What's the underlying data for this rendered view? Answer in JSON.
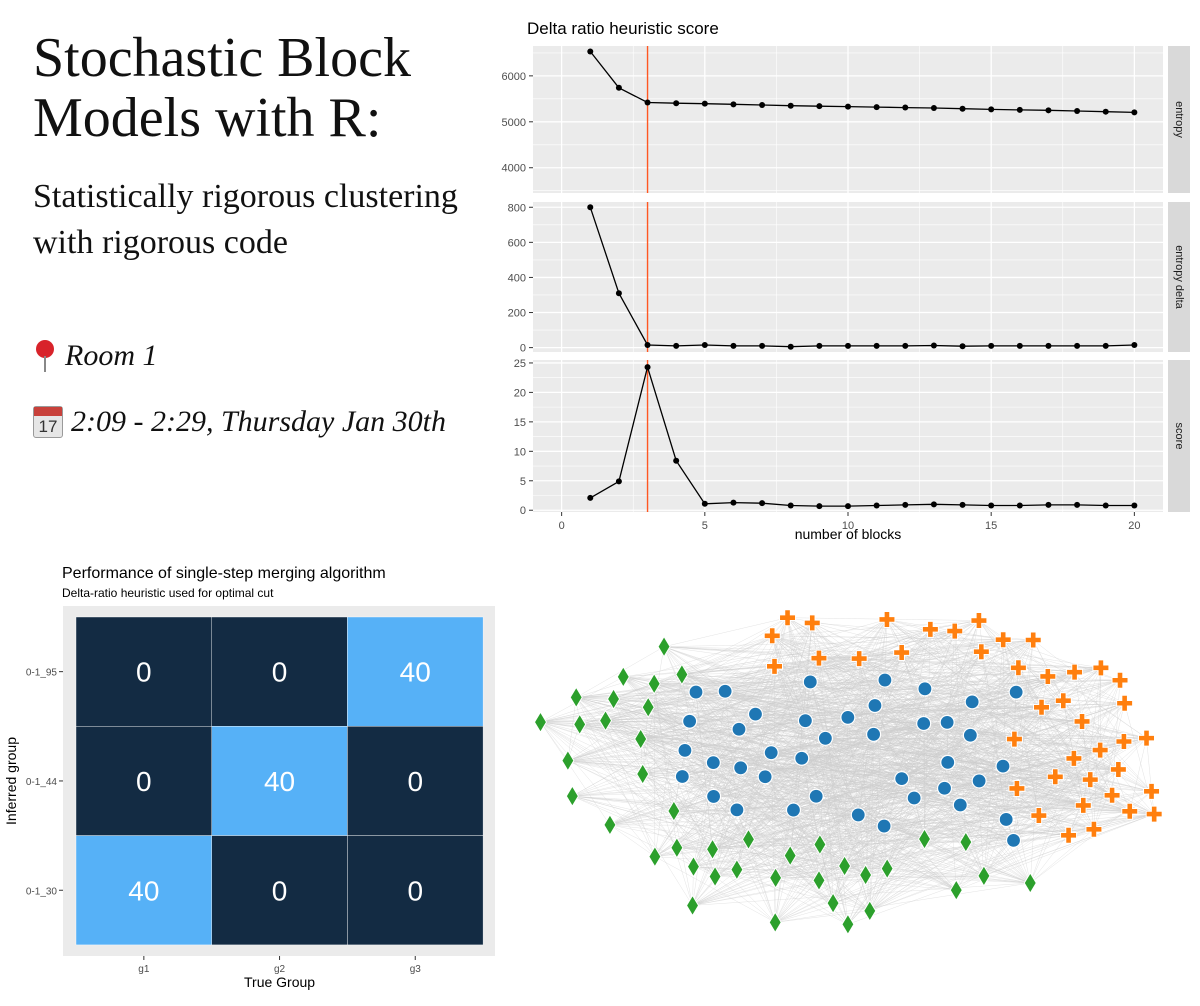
{
  "slide": {
    "title": "Stochastic Block Models with R:",
    "subtitle": "Statistically rigorous clustering with rigorous code",
    "room_icon": "pushpin-icon",
    "room": "Room 1",
    "time_icon": "calendar-icon",
    "calendar_day": "17",
    "time": "2:09 - 2:29, Thursday Jan 30th"
  },
  "colors": {
    "panel_bg": "#ebebeb",
    "strip_bg": "#d9d9d9",
    "line": "#000000",
    "cutoff": "#ff5722",
    "tile_dark": "#132b43",
    "tile_light": "#56b1f7",
    "edge": "#cccccc",
    "group_green": "#2ca02c",
    "group_blue": "#1f77b4",
    "group_orange": "#ff7f0e"
  },
  "chart_data": [
    {
      "type": "line",
      "title": "Delta ratio heuristic score",
      "xlabel": "number of blocks",
      "xlim": [
        -1,
        21
      ],
      "xticks": [
        "0",
        "5",
        "10",
        "15",
        "20"
      ],
      "cutoff_x": 3,
      "x": [
        1,
        2,
        3,
        4,
        5,
        6,
        7,
        8,
        9,
        10,
        11,
        12,
        13,
        14,
        15,
        16,
        17,
        18,
        19,
        20
      ],
      "series": [
        {
          "name": "entropy",
          "ylim": [
            3450,
            6650
          ],
          "yticks": [
            "4000",
            "5000",
            "6000"
          ],
          "values": [
            6530,
            5740,
            5420,
            5405,
            5395,
            5380,
            5365,
            5350,
            5340,
            5330,
            5320,
            5310,
            5300,
            5285,
            5270,
            5260,
            5250,
            5235,
            5220,
            5205
          ]
        },
        {
          "name": "entropy delta",
          "ylim": [
            -25,
            830
          ],
          "yticks": [
            "0",
            "200",
            "400",
            "600",
            "800"
          ],
          "values": [
            800,
            310,
            15,
            10,
            15,
            10,
            10,
            5,
            10,
            10,
            10,
            10,
            12,
            8,
            10,
            10,
            10,
            10,
            10,
            15
          ]
        },
        {
          "name": "score",
          "ylim": [
            -0.3,
            25.5
          ],
          "yticks": [
            "0",
            "5",
            "10",
            "15",
            "20",
            "25"
          ],
          "values": [
            2.1,
            4.9,
            24.3,
            8.4,
            1.1,
            1.3,
            1.2,
            0.8,
            0.7,
            0.7,
            0.8,
            0.9,
            1.0,
            0.9,
            0.8,
            0.8,
            0.9,
            0.9,
            0.8,
            0.8
          ]
        }
      ]
    },
    {
      "type": "heatmap",
      "title": "Performance of single-step merging algorithm",
      "subtitle": "Delta-ratio heuristic used for optimal cut",
      "xlabel": "True Group",
      "ylabel": "Inferred group",
      "x_categories": [
        "g1",
        "g2",
        "g3"
      ],
      "y_categories": [
        "0-1_95",
        "0-1_44",
        "0-1_30"
      ],
      "values": [
        [
          0,
          0,
          40
        ],
        [
          0,
          40,
          0
        ],
        [
          40,
          0,
          0
        ]
      ]
    },
    {
      "type": "network",
      "groups": [
        {
          "name": "green-diamond",
          "shape": "diamond",
          "count": 40
        },
        {
          "name": "blue-circle",
          "shape": "circle",
          "count": 40
        },
        {
          "name": "orange-cross",
          "shape": "cross",
          "count": 40
        }
      ]
    }
  ]
}
